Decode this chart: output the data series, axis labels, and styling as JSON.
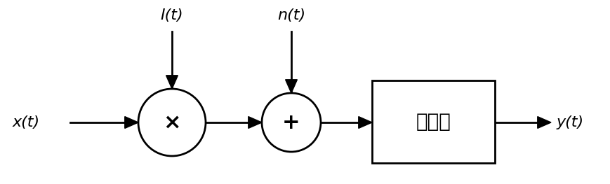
{
  "bg_color": "#ffffff",
  "fig_width": 8.69,
  "fig_height": 2.63,
  "dpi": 100,
  "label_xt": "x(t)",
  "label_It": "I(t)",
  "label_nt": "n(t)",
  "label_yt": "y(t)",
  "box_label": "接收机",
  "circle1_symbol": "×",
  "circle2_symbol": "+",
  "arrow_color": "#000000",
  "line_color": "#000000",
  "text_color": "#000000",
  "font_size_labels": 16,
  "font_size_box": 20,
  "font_size_symbols": 22
}
